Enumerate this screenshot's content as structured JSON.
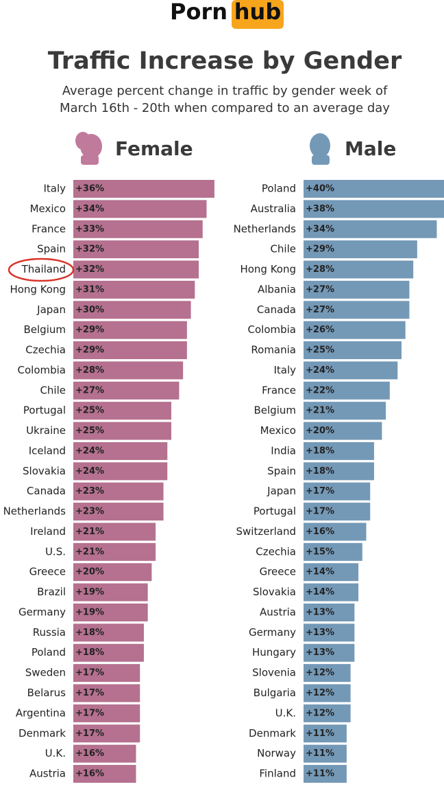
{
  "header": {
    "logo": {
      "left": "Porn",
      "right": "hub"
    },
    "title": "Traffic Increase by Gender",
    "subtitle": [
      "Average percent change in traffic by gender week of",
      "March 16th - 20th when compared to an average day"
    ]
  },
  "chart_data": [
    {
      "type": "bar",
      "orientation": "horizontal",
      "title": "Female",
      "color": "#b5718f",
      "categories": [
        "Italy",
        "Mexico",
        "France",
        "Spain",
        "Thailand",
        "Hong Kong",
        "Japan",
        "Belgium",
        "Czechia",
        "Colombia",
        "Chile",
        "Portugal",
        "Ukraine",
        "Iceland",
        "Slovakia",
        "Canada",
        "Netherlands",
        "Ireland",
        "U.S.",
        "Greece",
        "Brazil",
        "Germany",
        "Russia",
        "Poland",
        "Sweden",
        "Belarus",
        "Argentina",
        "Denmark",
        "U.K.",
        "Austria"
      ],
      "values": [
        36,
        34,
        33,
        32,
        32,
        31,
        30,
        29,
        29,
        28,
        27,
        25,
        25,
        24,
        24,
        23,
        23,
        21,
        21,
        20,
        19,
        19,
        18,
        18,
        17,
        17,
        17,
        17,
        16,
        16
      ],
      "value_labels": [
        "+36%",
        "+34%",
        "+33%",
        "+32%",
        "+32%",
        "+31%",
        "+30%",
        "+29%",
        "+29%",
        "+28%",
        "+27%",
        "+25%",
        "+25%",
        "+24%",
        "+24%",
        "+23%",
        "+23%",
        "+21%",
        "+21%",
        "+20%",
        "+19%",
        "+19%",
        "+18%",
        "+18%",
        "+17%",
        "+17%",
        "+17%",
        "+17%",
        "+16%",
        "+16%"
      ]
    },
    {
      "type": "bar",
      "orientation": "horizontal",
      "title": "Male",
      "color": "#7499b7",
      "categories": [
        "Poland",
        "Australia",
        "Netherlands",
        "Chile",
        "Hong Kong",
        "Albania",
        "Canada",
        "Colombia",
        "Romania",
        "Italy",
        "France",
        "Belgium",
        "Mexico",
        "India",
        "Spain",
        "Japan",
        "Portugal",
        "Switzerland",
        "Czechia",
        "Greece",
        "Slovakia",
        "Austria",
        "Germany",
        "Hungary",
        "Slovenia",
        "Bulgaria",
        "U.K.",
        "Denmark",
        "Norway",
        "Finland"
      ],
      "values": [
        40,
        38,
        34,
        29,
        28,
        27,
        27,
        26,
        25,
        24,
        22,
        21,
        20,
        18,
        18,
        17,
        17,
        16,
        15,
        14,
        14,
        13,
        13,
        13,
        12,
        12,
        12,
        11,
        11,
        11
      ],
      "value_labels": [
        "+40%",
        "+38%",
        "+34%",
        "+29%",
        "+28%",
        "+27%",
        "+27%",
        "+26%",
        "+25%",
        "+24%",
        "+22%",
        "+21%",
        "+20%",
        "+18%",
        "+18%",
        "+17%",
        "+17%",
        "+16%",
        "+15%",
        "+14%",
        "+14%",
        "+13%",
        "+13%",
        "+13%",
        "+12%",
        "+12%",
        "+12%",
        "+11%",
        "+11%",
        "+11%"
      ]
    }
  ]
}
